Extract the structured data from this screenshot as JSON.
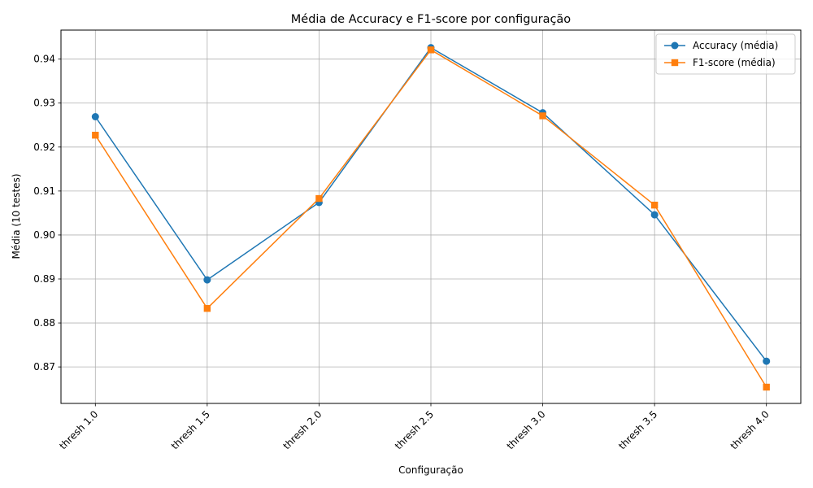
{
  "chart_data": {
    "type": "line",
    "title": "Média de Accuracy e F1-score por configuração",
    "xlabel": "Configuração",
    "ylabel": "Média (10 testes)",
    "categories": [
      "thresh 1.0",
      "thresh 1.5",
      "thresh 2.0",
      "thresh 2.5",
      "thresh 3.0",
      "thresh 3.5",
      "thresh 4.0"
    ],
    "series": [
      {
        "name": "Accuracy (média)",
        "color": "#1f77b4",
        "marker": "circle",
        "values": [
          0.9269,
          0.8898,
          0.9074,
          0.9426,
          0.9278,
          0.9046,
          0.8713
        ]
      },
      {
        "name": "F1-score (média)",
        "color": "#ff7f0e",
        "marker": "square",
        "values": [
          0.9227,
          0.8833,
          0.9083,
          0.9421,
          0.9271,
          0.9068,
          0.8654
        ]
      }
    ],
    "ylim": [
      0.8617,
      0.9466
    ],
    "yticks": [
      "0.87",
      "0.88",
      "0.89",
      "0.90",
      "0.91",
      "0.92",
      "0.93",
      "0.94"
    ],
    "grid": true,
    "legend_position": "top-right"
  }
}
